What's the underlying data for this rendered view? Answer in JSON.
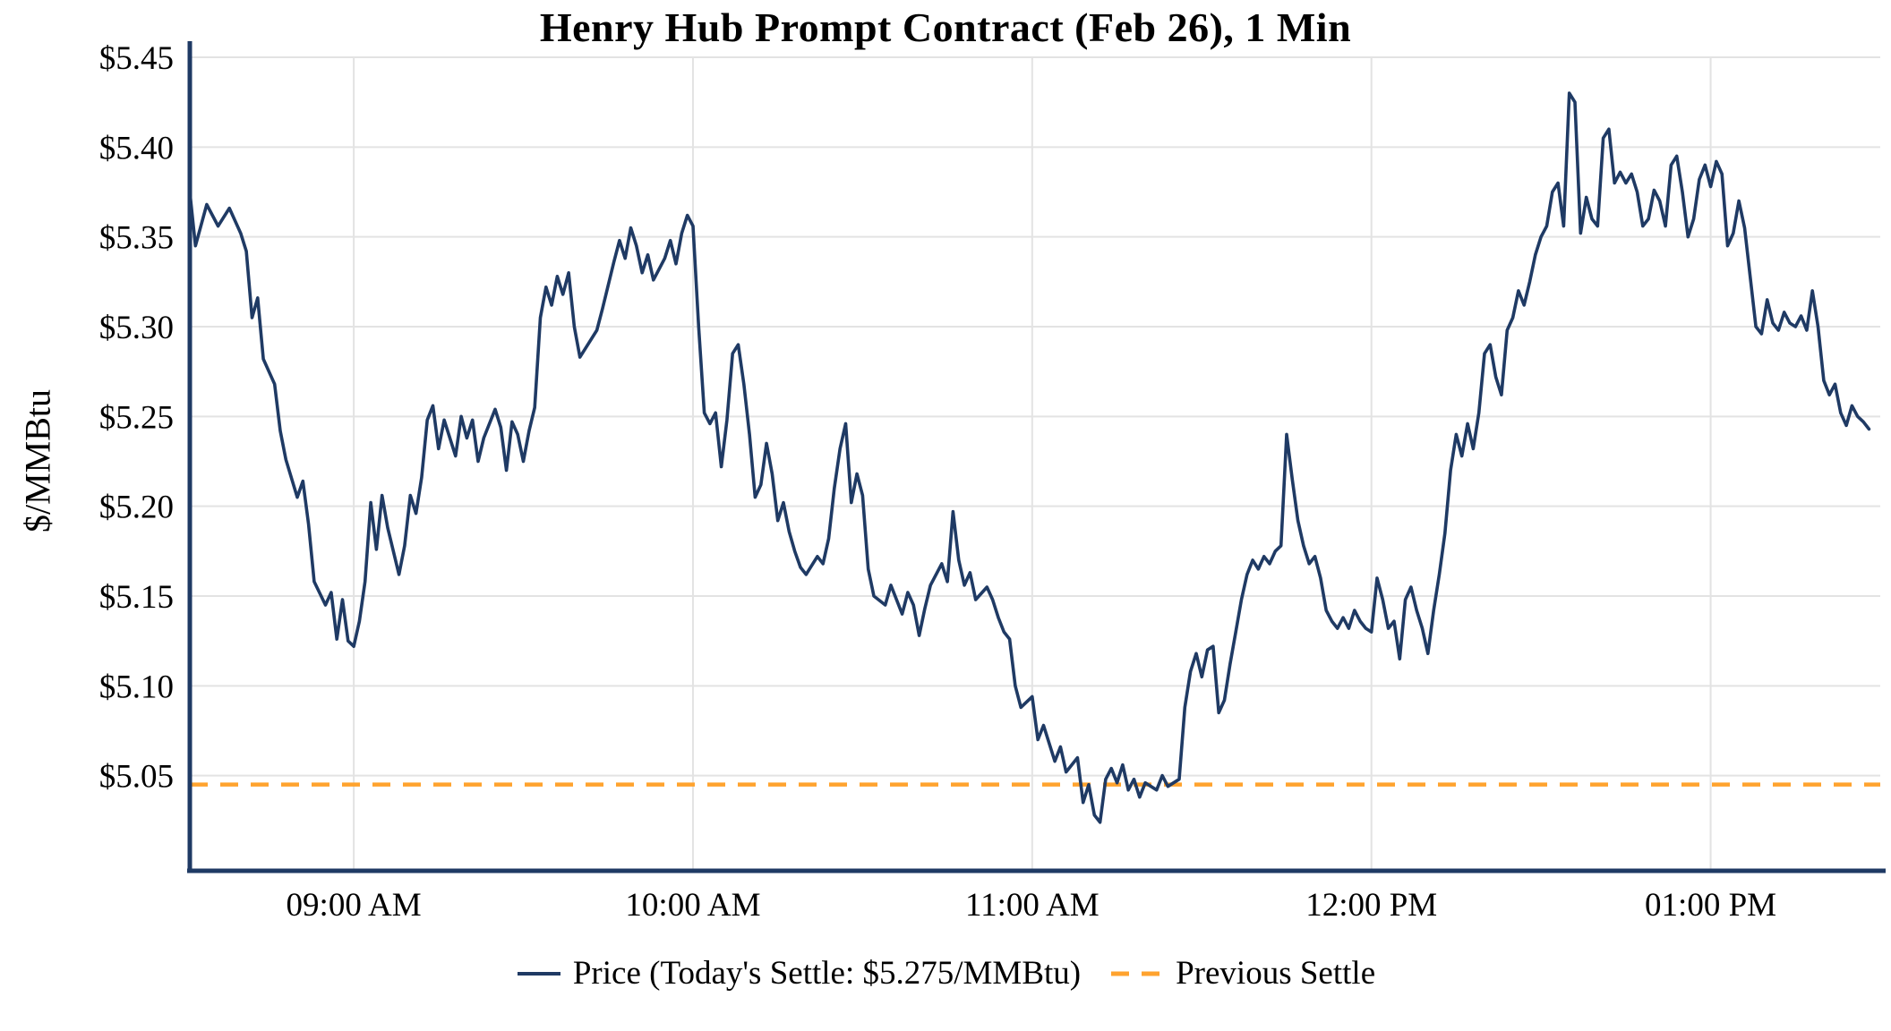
{
  "title": "Henry Hub Prompt Contract (Feb 26), 1 Min",
  "y_axis": {
    "label": "$/MMBtu",
    "ticks": [
      {
        "label": "$5.45",
        "value": 5.45
      },
      {
        "label": "$5.40",
        "value": 5.4
      },
      {
        "label": "$5.35",
        "value": 5.35
      },
      {
        "label": "$5.30",
        "value": 5.3
      },
      {
        "label": "$5.25",
        "value": 5.25
      },
      {
        "label": "$5.20",
        "value": 5.2
      },
      {
        "label": "$5.15",
        "value": 5.15
      },
      {
        "label": "$5.10",
        "value": 5.1
      },
      {
        "label": "$5.05",
        "value": 5.05
      }
    ]
  },
  "x_axis": {
    "ticks": [
      {
        "label": "09:00 AM",
        "minutes": 540
      },
      {
        "label": "10:00 AM",
        "minutes": 600
      },
      {
        "label": "11:00 AM",
        "minutes": 660
      },
      {
        "label": "12:00 PM",
        "minutes": 720
      },
      {
        "label": "01:00 PM",
        "minutes": 780
      }
    ]
  },
  "legend": {
    "price_label": "Price (Today's Settle: $5.275/MMBtu)",
    "settle_label": "Previous Settle"
  },
  "colors": {
    "price_line": "#1f3a64",
    "previous_settle_line": "#ffa32e",
    "grid": "#e3e3e3",
    "axis": "#1f3a64",
    "text": "#000000"
  },
  "chart_data": {
    "type": "line",
    "title": "Henry Hub Prompt Contract (Feb 26), 1 Min",
    "xlabel": "",
    "ylabel": "$/MMBtu",
    "y_range": [
      4.997,
      5.45
    ],
    "x_range_minutes": [
      511,
      810
    ],
    "grid": true,
    "legend_position": "bottom-center",
    "previous_settle": 5.045,
    "todays_settle": 5.275,
    "series": [
      {
        "name": "Price",
        "points": [
          [
            "08:31",
            5.375
          ],
          [
            "08:32",
            5.345
          ],
          [
            "08:34",
            5.368
          ],
          [
            "08:36",
            5.356
          ],
          [
            "08:38",
            5.366
          ],
          [
            "08:40",
            5.352
          ],
          [
            "08:41",
            5.342
          ],
          [
            "08:42",
            5.305
          ],
          [
            "08:43",
            5.316
          ],
          [
            "08:44",
            5.282
          ],
          [
            "08:46",
            5.268
          ],
          [
            "08:47",
            5.242
          ],
          [
            "08:48",
            5.226
          ],
          [
            "08:50",
            5.205
          ],
          [
            "08:51",
            5.214
          ],
          [
            "08:52",
            5.19
          ],
          [
            "08:53",
            5.158
          ],
          [
            "08:55",
            5.145
          ],
          [
            "08:56",
            5.152
          ],
          [
            "08:57",
            5.126
          ],
          [
            "08:58",
            5.148
          ],
          [
            "08:59",
            5.125
          ],
          [
            "09:00",
            5.122
          ],
          [
            "09:01",
            5.136
          ],
          [
            "09:02",
            5.158
          ],
          [
            "09:03",
            5.202
          ],
          [
            "09:04",
            5.176
          ],
          [
            "09:05",
            5.206
          ],
          [
            "09:06",
            5.188
          ],
          [
            "09:08",
            5.162
          ],
          [
            "09:09",
            5.178
          ],
          [
            "09:10",
            5.206
          ],
          [
            "09:11",
            5.196
          ],
          [
            "09:12",
            5.216
          ],
          [
            "09:13",
            5.248
          ],
          [
            "09:14",
            5.256
          ],
          [
            "09:15",
            5.232
          ],
          [
            "09:16",
            5.248
          ],
          [
            "09:18",
            5.228
          ],
          [
            "09:19",
            5.25
          ],
          [
            "09:20",
            5.238
          ],
          [
            "09:21",
            5.248
          ],
          [
            "09:22",
            5.225
          ],
          [
            "09:23",
            5.238
          ],
          [
            "09:25",
            5.254
          ],
          [
            "09:26",
            5.244
          ],
          [
            "09:27",
            5.22
          ],
          [
            "09:28",
            5.247
          ],
          [
            "09:29",
            5.24
          ],
          [
            "09:30",
            5.225
          ],
          [
            "09:31",
            5.242
          ],
          [
            "09:32",
            5.255
          ],
          [
            "09:33",
            5.305
          ],
          [
            "09:34",
            5.322
          ],
          [
            "09:35",
            5.312
          ],
          [
            "09:36",
            5.328
          ],
          [
            "09:37",
            5.318
          ],
          [
            "09:38",
            5.33
          ],
          [
            "09:39",
            5.3
          ],
          [
            "09:40",
            5.283
          ],
          [
            "09:41",
            5.288
          ],
          [
            "09:43",
            5.298
          ],
          [
            "09:44",
            5.31
          ],
          [
            "09:46",
            5.336
          ],
          [
            "09:47",
            5.348
          ],
          [
            "09:48",
            5.338
          ],
          [
            "09:49",
            5.355
          ],
          [
            "09:50",
            5.345
          ],
          [
            "09:51",
            5.33
          ],
          [
            "09:52",
            5.34
          ],
          [
            "09:53",
            5.326
          ],
          [
            "09:55",
            5.338
          ],
          [
            "09:56",
            5.348
          ],
          [
            "09:57",
            5.335
          ],
          [
            "09:58",
            5.352
          ],
          [
            "09:59",
            5.362
          ],
          [
            "10:00",
            5.356
          ],
          [
            "10:01",
            5.3
          ],
          [
            "10:02",
            5.252
          ],
          [
            "10:03",
            5.246
          ],
          [
            "10:04",
            5.252
          ],
          [
            "10:05",
            5.222
          ],
          [
            "10:06",
            5.248
          ],
          [
            "10:07",
            5.285
          ],
          [
            "10:08",
            5.29
          ],
          [
            "10:09",
            5.268
          ],
          [
            "10:10",
            5.24
          ],
          [
            "10:11",
            5.205
          ],
          [
            "10:12",
            5.212
          ],
          [
            "10:13",
            5.235
          ],
          [
            "10:14",
            5.218
          ],
          [
            "10:15",
            5.192
          ],
          [
            "10:16",
            5.202
          ],
          [
            "10:17",
            5.186
          ],
          [
            "10:18",
            5.175
          ],
          [
            "10:19",
            5.166
          ],
          [
            "10:20",
            5.162
          ],
          [
            "10:22",
            5.172
          ],
          [
            "10:23",
            5.168
          ],
          [
            "10:24",
            5.182
          ],
          [
            "10:25",
            5.21
          ],
          [
            "10:26",
            5.232
          ],
          [
            "10:27",
            5.246
          ],
          [
            "10:28",
            5.202
          ],
          [
            "10:29",
            5.218
          ],
          [
            "10:30",
            5.206
          ],
          [
            "10:31",
            5.165
          ],
          [
            "10:32",
            5.15
          ],
          [
            "10:34",
            5.145
          ],
          [
            "10:35",
            5.156
          ],
          [
            "10:36",
            5.148
          ],
          [
            "10:37",
            5.14
          ],
          [
            "10:38",
            5.152
          ],
          [
            "10:39",
            5.145
          ],
          [
            "10:40",
            5.128
          ],
          [
            "10:41",
            5.143
          ],
          [
            "10:42",
            5.156
          ],
          [
            "10:44",
            5.168
          ],
          [
            "10:45",
            5.158
          ],
          [
            "10:46",
            5.197
          ],
          [
            "10:47",
            5.17
          ],
          [
            "10:48",
            5.156
          ],
          [
            "10:49",
            5.163
          ],
          [
            "10:50",
            5.148
          ],
          [
            "10:52",
            5.155
          ],
          [
            "10:53",
            5.148
          ],
          [
            "10:54",
            5.138
          ],
          [
            "10:55",
            5.13
          ],
          [
            "10:56",
            5.126
          ],
          [
            "10:57",
            5.1
          ],
          [
            "10:58",
            5.088
          ],
          [
            "11:00",
            5.094
          ],
          [
            "11:01",
            5.07
          ],
          [
            "11:02",
            5.078
          ],
          [
            "11:04",
            5.058
          ],
          [
            "11:05",
            5.066
          ],
          [
            "11:06",
            5.052
          ],
          [
            "11:08",
            5.06
          ],
          [
            "11:09",
            5.035
          ],
          [
            "11:10",
            5.045
          ],
          [
            "11:11",
            5.028
          ],
          [
            "11:12",
            5.024
          ],
          [
            "11:13",
            5.048
          ],
          [
            "11:14",
            5.054
          ],
          [
            "11:15",
            5.046
          ],
          [
            "11:16",
            5.056
          ],
          [
            "11:17",
            5.042
          ],
          [
            "11:18",
            5.048
          ],
          [
            "11:19",
            5.038
          ],
          [
            "11:20",
            5.046
          ],
          [
            "11:22",
            5.042
          ],
          [
            "11:23",
            5.05
          ],
          [
            "11:24",
            5.044
          ],
          [
            "11:26",
            5.048
          ],
          [
            "11:27",
            5.088
          ],
          [
            "11:28",
            5.108
          ],
          [
            "11:29",
            5.118
          ],
          [
            "11:30",
            5.105
          ],
          [
            "11:31",
            5.12
          ],
          [
            "11:32",
            5.122
          ],
          [
            "11:33",
            5.085
          ],
          [
            "11:34",
            5.092
          ],
          [
            "11:35",
            5.112
          ],
          [
            "11:36",
            5.13
          ],
          [
            "11:37",
            5.148
          ],
          [
            "11:38",
            5.162
          ],
          [
            "11:39",
            5.17
          ],
          [
            "11:40",
            5.165
          ],
          [
            "11:41",
            5.172
          ],
          [
            "11:42",
            5.168
          ],
          [
            "11:43",
            5.175
          ],
          [
            "11:44",
            5.178
          ],
          [
            "11:45",
            5.24
          ],
          [
            "11:46",
            5.215
          ],
          [
            "11:47",
            5.192
          ],
          [
            "11:48",
            5.178
          ],
          [
            "11:49",
            5.168
          ],
          [
            "11:50",
            5.172
          ],
          [
            "11:51",
            5.16
          ],
          [
            "11:52",
            5.142
          ],
          [
            "11:53",
            5.136
          ],
          [
            "11:54",
            5.132
          ],
          [
            "11:55",
            5.138
          ],
          [
            "11:56",
            5.132
          ],
          [
            "11:57",
            5.142
          ],
          [
            "11:58",
            5.136
          ],
          [
            "11:59",
            5.132
          ],
          [
            "12:00",
            5.13
          ],
          [
            "12:01",
            5.16
          ],
          [
            "12:02",
            5.148
          ],
          [
            "12:03",
            5.132
          ],
          [
            "12:04",
            5.136
          ],
          [
            "12:05",
            5.115
          ],
          [
            "12:06",
            5.148
          ],
          [
            "12:07",
            5.155
          ],
          [
            "12:08",
            5.142
          ],
          [
            "12:09",
            5.132
          ],
          [
            "12:10",
            5.118
          ],
          [
            "12:11",
            5.142
          ],
          [
            "12:12",
            5.162
          ],
          [
            "12:13",
            5.185
          ],
          [
            "12:14",
            5.22
          ],
          [
            "12:15",
            5.24
          ],
          [
            "12:16",
            5.228
          ],
          [
            "12:17",
            5.246
          ],
          [
            "12:18",
            5.232
          ],
          [
            "12:19",
            5.252
          ],
          [
            "12:20",
            5.285
          ],
          [
            "12:21",
            5.29
          ],
          [
            "12:22",
            5.272
          ],
          [
            "12:23",
            5.262
          ],
          [
            "12:24",
            5.298
          ],
          [
            "12:25",
            5.305
          ],
          [
            "12:26",
            5.32
          ],
          [
            "12:27",
            5.312
          ],
          [
            "12:28",
            5.325
          ],
          [
            "12:29",
            5.34
          ],
          [
            "12:30",
            5.35
          ],
          [
            "12:31",
            5.356
          ],
          [
            "12:32",
            5.375
          ],
          [
            "12:33",
            5.38
          ],
          [
            "12:34",
            5.356
          ],
          [
            "12:35",
            5.43
          ],
          [
            "12:36",
            5.425
          ],
          [
            "12:37",
            5.352
          ],
          [
            "12:38",
            5.372
          ],
          [
            "12:39",
            5.36
          ],
          [
            "12:40",
            5.356
          ],
          [
            "12:41",
            5.405
          ],
          [
            "12:42",
            5.41
          ],
          [
            "12:43",
            5.38
          ],
          [
            "12:44",
            5.386
          ],
          [
            "12:45",
            5.38
          ],
          [
            "12:46",
            5.385
          ],
          [
            "12:47",
            5.375
          ],
          [
            "12:48",
            5.356
          ],
          [
            "12:49",
            5.36
          ],
          [
            "12:50",
            5.376
          ],
          [
            "12:51",
            5.37
          ],
          [
            "12:52",
            5.356
          ],
          [
            "12:53",
            5.39
          ],
          [
            "12:54",
            5.395
          ],
          [
            "12:55",
            5.375
          ],
          [
            "12:56",
            5.35
          ],
          [
            "12:57",
            5.36
          ],
          [
            "12:58",
            5.382
          ],
          [
            "12:59",
            5.39
          ],
          [
            "13:00",
            5.378
          ],
          [
            "13:01",
            5.392
          ],
          [
            "13:02",
            5.385
          ],
          [
            "13:03",
            5.345
          ],
          [
            "13:04",
            5.352
          ],
          [
            "13:05",
            5.37
          ],
          [
            "13:06",
            5.355
          ],
          [
            "13:08",
            5.3
          ],
          [
            "13:09",
            5.296
          ],
          [
            "13:10",
            5.315
          ],
          [
            "13:11",
            5.302
          ],
          [
            "13:12",
            5.298
          ],
          [
            "13:13",
            5.308
          ],
          [
            "13:14",
            5.302
          ],
          [
            "13:15",
            5.3
          ],
          [
            "13:16",
            5.306
          ],
          [
            "13:17",
            5.298
          ],
          [
            "13:18",
            5.32
          ],
          [
            "13:19",
            5.3
          ],
          [
            "13:20",
            5.27
          ],
          [
            "13:21",
            5.262
          ],
          [
            "13:22",
            5.268
          ],
          [
            "13:23",
            5.252
          ],
          [
            "13:24",
            5.245
          ],
          [
            "13:25",
            5.256
          ],
          [
            "13:26",
            5.25
          ],
          [
            "13:27",
            5.247
          ],
          [
            "13:28",
            5.243
          ]
        ]
      }
    ]
  }
}
